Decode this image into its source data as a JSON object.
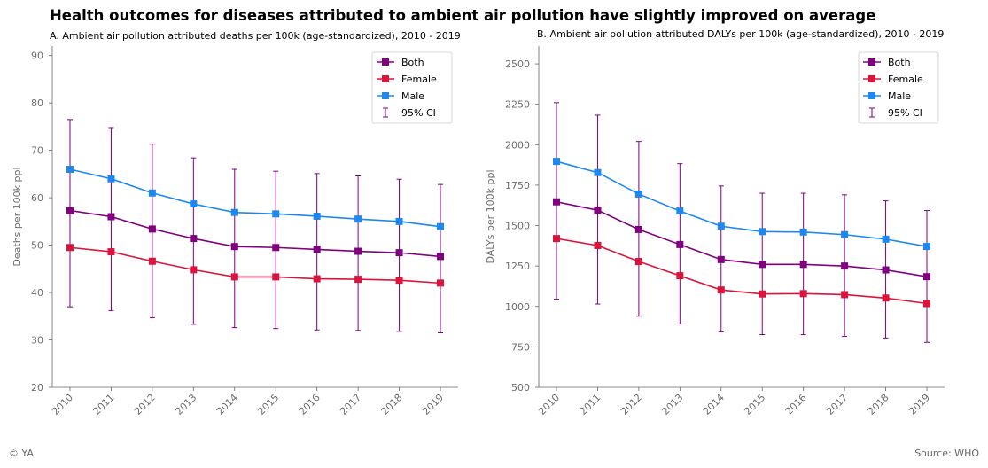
{
  "title": "Health outcomes for diseases attributed to ambient air pollution have slightly improved on average",
  "footer": {
    "left": "© YA",
    "right": "Source: WHO"
  },
  "colors": {
    "Both": "#800080",
    "Female": "#dc143c",
    "Male": "#1e88f0",
    "CI": "#800080"
  },
  "chart_data": [
    {
      "type": "line",
      "title": "A. Ambient air pollution attributed deaths per 100k (age-standardized), 2010 - 2019",
      "xlabel": "",
      "ylabel": "Deaths per 100k ppl",
      "ylim": [
        20,
        92
      ],
      "yticks": [
        20,
        30,
        40,
        50,
        60,
        70,
        80,
        90
      ],
      "categories": [
        "2010",
        "2011",
        "2012",
        "2013",
        "2014",
        "2015",
        "2016",
        "2017",
        "2018",
        "2019"
      ],
      "series": [
        {
          "name": "Both",
          "values": [
            57.3,
            56.0,
            53.4,
            51.4,
            49.7,
            49.5,
            49.1,
            48.7,
            48.4,
            47.6
          ]
        },
        {
          "name": "Female",
          "values": [
            49.5,
            48.6,
            46.6,
            44.8,
            43.3,
            43.3,
            42.9,
            42.8,
            42.6,
            42.0
          ]
        },
        {
          "name": "Male",
          "values": [
            66.0,
            64.0,
            61.0,
            58.7,
            56.9,
            56.6,
            56.1,
            55.5,
            55.0,
            53.9
          ]
        }
      ],
      "ci": {
        "name": "95% CI",
        "lower": [
          37.0,
          36.2,
          34.7,
          33.3,
          32.6,
          32.4,
          32.1,
          32.0,
          31.8,
          31.5
        ],
        "upper": [
          76.5,
          74.8,
          71.3,
          68.4,
          66.0,
          65.6,
          65.1,
          64.6,
          63.9,
          62.8
        ]
      },
      "legend": "top-right"
    },
    {
      "type": "line",
      "title": "B. Ambient air pollution attributed DALYs per 100k (age-standardized), 2010 - 2019",
      "xlabel": "",
      "ylabel": "DALYs per 100k ppl",
      "ylim": [
        500,
        2610
      ],
      "yticks": [
        500,
        750,
        1000,
        1250,
        1500,
        1750,
        2000,
        2250,
        2500
      ],
      "categories": [
        "2010",
        "2011",
        "2012",
        "2013",
        "2014",
        "2015",
        "2016",
        "2017",
        "2018",
        "2019"
      ],
      "series": [
        {
          "name": "Both",
          "values": [
            1647,
            1595,
            1476,
            1383,
            1290,
            1260,
            1260,
            1250,
            1226,
            1184
          ]
        },
        {
          "name": "Female",
          "values": [
            1420,
            1377,
            1278,
            1190,
            1102,
            1077,
            1079,
            1073,
            1052,
            1018
          ]
        },
        {
          "name": "Male",
          "values": [
            1897,
            1828,
            1695,
            1590,
            1496,
            1463,
            1460,
            1444,
            1416,
            1371
          ]
        }
      ],
      "ci": {
        "name": "95% CI",
        "lower": [
          1045,
          1015,
          940,
          892,
          843,
          826,
          826,
          815,
          805,
          778
        ],
        "upper": [
          2260,
          2183,
          2020,
          1883,
          1745,
          1700,
          1700,
          1690,
          1653,
          1593
        ]
      },
      "legend": "top-right"
    }
  ]
}
